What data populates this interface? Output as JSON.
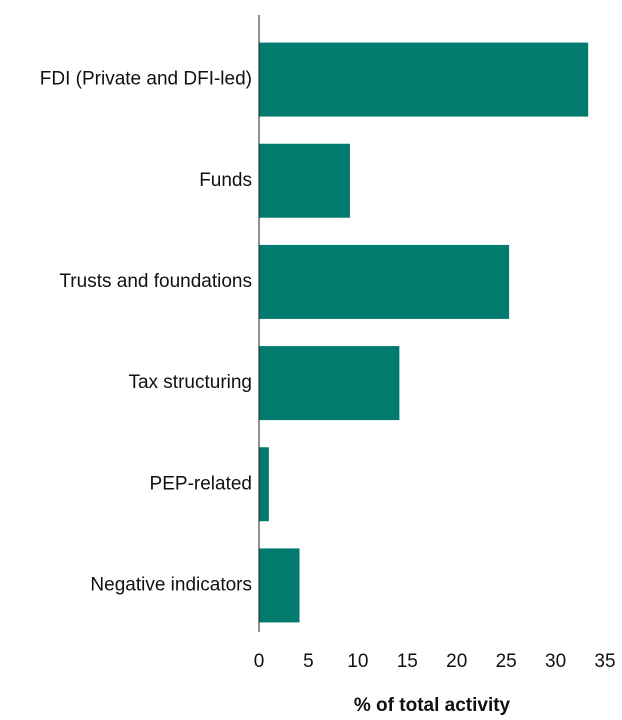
{
  "chart_data": {
    "type": "bar",
    "orientation": "horizontal",
    "categories": [
      "FDI (Private and DFI-led)",
      "Funds",
      "Trusts and foundations",
      "Tax structuring",
      "PEP-related",
      "Negative indicators"
    ],
    "values": [
      33.3,
      9.2,
      25.3,
      14.2,
      1.0,
      4.1
    ],
    "color": "#007b6e",
    "xlabel": "% of total activity",
    "xlim": [
      0,
      35
    ],
    "xticks": [
      0,
      5,
      10,
      15,
      20,
      25,
      30,
      35
    ],
    "grid": false
  }
}
